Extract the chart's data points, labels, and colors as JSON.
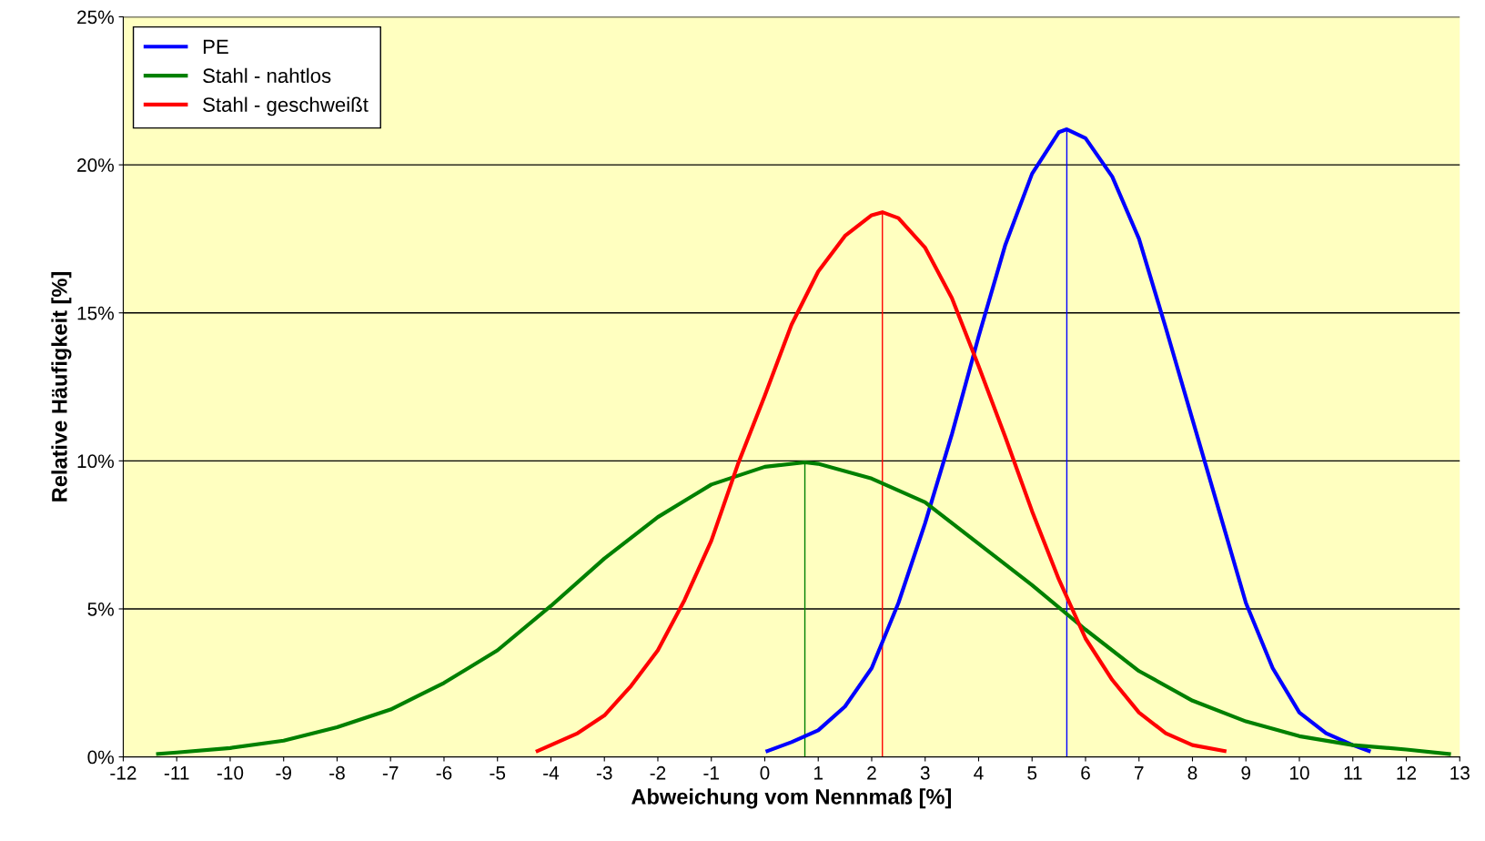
{
  "chart_data": {
    "type": "line",
    "xlabel": "Abweichung vom Nennmaß [%]",
    "ylabel": "Relative Häufigkeit [%]",
    "xlim": [
      -12,
      13
    ],
    "xticks": [
      -12,
      -11,
      -10,
      -9,
      -8,
      -7,
      -6,
      -5,
      -4,
      -3,
      -2,
      -1,
      0,
      1,
      2,
      3,
      4,
      5,
      6,
      7,
      8,
      9,
      10,
      11,
      12,
      13
    ],
    "ylim": [
      0,
      25
    ],
    "yticks": [
      {
        "value": 0,
        "label": "0%"
      },
      {
        "value": 5,
        "label": "5%"
      },
      {
        "value": 10,
        "label": "10%"
      },
      {
        "value": 15,
        "label": "15%"
      },
      {
        "value": 20,
        "label": "20%"
      },
      {
        "value": 25,
        "label": "25%"
      }
    ],
    "grid": "y",
    "legend": "top left",
    "marker": "none",
    "line_style": "solid",
    "series": [
      {
        "name": "PE",
        "color": "#0000ff",
        "x": [
          0.05,
          0.5,
          1,
          1.5,
          2,
          2.5,
          3,
          3.5,
          4,
          4.5,
          5,
          5.5,
          5.65,
          6,
          6.5,
          7,
          7.5,
          8,
          8.5,
          9,
          9.5,
          10,
          10.5,
          11,
          11.3
        ],
        "values": [
          0.2,
          0.5,
          0.9,
          1.7,
          3,
          5.2,
          7.9,
          10.9,
          14.2,
          17.3,
          19.7,
          21.1,
          21.2,
          20.9,
          19.6,
          17.5,
          14.5,
          11.4,
          8.3,
          5.2,
          3.0,
          1.5,
          0.8,
          0.4,
          0.2
        ]
      },
      {
        "name": "Stahl - nahtlos",
        "color": "#008000",
        "x": [
          -11.35,
          -11,
          -10,
          -9,
          -8,
          -7,
          -6,
          -5,
          -4,
          -3,
          -2,
          -1,
          0,
          0.75,
          1,
          2,
          3,
          4,
          5,
          6,
          7,
          8,
          9,
          10,
          11,
          12,
          12.8
        ],
        "values": [
          0.1,
          0.15,
          0.3,
          0.55,
          1.0,
          1.6,
          2.5,
          3.6,
          5.1,
          6.7,
          8.1,
          9.2,
          9.8,
          9.95,
          9.9,
          9.4,
          8.6,
          7.2,
          5.8,
          4.3,
          2.9,
          1.9,
          1.2,
          0.7,
          0.4,
          0.25,
          0.1
        ]
      },
      {
        "name": "Stahl - geschweißt",
        "color": "#ff0000",
        "x": [
          -4.25,
          -4,
          -3.5,
          -3,
          -2.5,
          -2,
          -1.5,
          -1,
          -0.5,
          0,
          0.5,
          1,
          1.5,
          2,
          2.2,
          2.5,
          3,
          3.5,
          4,
          4.5,
          5,
          5.5,
          6,
          6.5,
          7,
          7.5,
          8,
          8.6
        ],
        "values": [
          0.2,
          0.4,
          0.8,
          1.4,
          2.4,
          3.6,
          5.3,
          7.3,
          9.9,
          12.2,
          14.6,
          16.4,
          17.6,
          18.3,
          18.4,
          18.2,
          17.2,
          15.5,
          13.2,
          10.8,
          8.3,
          6.0,
          4.0,
          2.6,
          1.5,
          0.8,
          0.4,
          0.2
        ]
      },
      {
        "color": "#0000ff",
        "x": [
          5.65,
          5.65
        ],
        "values": [
          0,
          21.2
        ]
      },
      {
        "color": "#008000",
        "x": [
          0.75,
          0.75
        ],
        "values": [
          0,
          9.95
        ]
      },
      {
        "color": "#ff0000",
        "x": [
          2.2,
          2.2
        ],
        "values": [
          0,
          18.4
        ]
      }
    ]
  }
}
